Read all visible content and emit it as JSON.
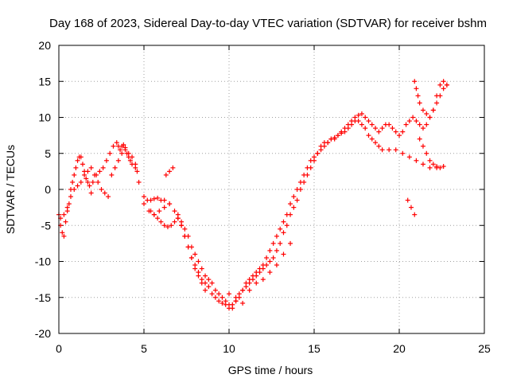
{
  "chart_data": {
    "type": "scatter",
    "title": "Day 168 of 2023, Sidereal Day-to-day VTEC variation (SDTVAR) for receiver bshm",
    "xlabel": "GPS time / hours",
    "ylabel": "SDTVAR / TECUs",
    "xlim": [
      0,
      25
    ],
    "ylim": [
      -20,
      20
    ],
    "xticks": [
      0,
      5,
      10,
      15,
      20,
      25
    ],
    "yticks": [
      -20,
      -15,
      -10,
      -5,
      0,
      5,
      10,
      15,
      20
    ],
    "xtick_labels": [
      "0",
      "5",
      "10",
      "15",
      "20",
      "25"
    ],
    "ytick_labels": [
      "-20",
      "-15",
      "-10",
      "-5",
      "0",
      "5",
      "10",
      "15",
      "20"
    ],
    "grid": true,
    "marker": "+",
    "marker_color": "#ff0000",
    "series": [
      {
        "name": "SDTVAR",
        "x": [
          0.0,
          0.1,
          0.2,
          0.3,
          0.4,
          0.5,
          0.6,
          0.7,
          0.8,
          0.9,
          1.0,
          1.1,
          1.2,
          1.3,
          1.4,
          1.5,
          1.6,
          1.7,
          1.8,
          1.9,
          2.0,
          2.2,
          2.4,
          2.6,
          2.8,
          3.0,
          3.2,
          3.4,
          3.5,
          3.6,
          3.7,
          3.8,
          3.9,
          4.0,
          4.1,
          4.2,
          4.3,
          4.5,
          4.6,
          4.7,
          5.0,
          5.2,
          5.4,
          5.6,
          5.8,
          6.0,
          6.2,
          6.5,
          6.8,
          7.0,
          7.2,
          7.4,
          7.6,
          7.8,
          8.0,
          8.2,
          8.4,
          8.6,
          8.8,
          9.0,
          9.2,
          9.4,
          9.6,
          9.8,
          10.0,
          10.2,
          10.4,
          10.6,
          10.8,
          11.0,
          11.2,
          11.4,
          11.6,
          11.8,
          12.0,
          12.2,
          12.4,
          12.6,
          12.8,
          13.0,
          13.2,
          13.4,
          13.6,
          13.8,
          14.0,
          14.2,
          14.4,
          14.6,
          14.8,
          15.0,
          15.2,
          15.4,
          15.6,
          15.8,
          16.0,
          16.2,
          16.4,
          16.6,
          16.8,
          17.0,
          17.2,
          17.4,
          17.6,
          17.8,
          18.0,
          18.2,
          18.4,
          18.6,
          18.8,
          19.0,
          19.2,
          19.4,
          19.6,
          19.8,
          20.0,
          20.2,
          20.4,
          20.6,
          20.8,
          21.0,
          21.2,
          21.4,
          21.6,
          21.8,
          22.0,
          22.2,
          22.4,
          22.6,
          22.8,
          0.1,
          0.3,
          0.5,
          0.7,
          0.9,
          1.1,
          1.3,
          1.5,
          1.7,
          1.9,
          2.1,
          2.3,
          2.5,
          2.7,
          2.9,
          3.1,
          3.3,
          3.5,
          3.7,
          3.9,
          4.1,
          4.3,
          4.5,
          5.0,
          5.3,
          5.6,
          5.9,
          6.2,
          6.5,
          7.0,
          7.2,
          7.4,
          7.6,
          7.8,
          8.0,
          8.2,
          8.4,
          8.6,
          8.8,
          9.0,
          9.2,
          9.4,
          9.6,
          9.8,
          10.0,
          10.2,
          10.4,
          10.6,
          10.8,
          11.0,
          11.2,
          11.4,
          11.6,
          11.8,
          12.0,
          12.2,
          12.4,
          12.6,
          12.8,
          13.0,
          13.2,
          13.4,
          13.6,
          13.8,
          14.0,
          14.2,
          14.4,
          14.6,
          14.8,
          15.0,
          15.2,
          15.4,
          15.6,
          15.8,
          16.0,
          16.2,
          16.4,
          16.6,
          16.8,
          17.0,
          17.2,
          17.4,
          17.6,
          17.8,
          18.0,
          18.2,
          18.4,
          18.6,
          18.8,
          19.0,
          19.4,
          19.8,
          20.2,
          20.6,
          21.0,
          21.4,
          21.8,
          22.2,
          22.6,
          5.4,
          5.6,
          5.8,
          6.0,
          6.2,
          6.4,
          6.6,
          6.8,
          7.0,
          7.2,
          7.4,
          7.6,
          7.8,
          8.0,
          8.2,
          8.4,
          8.6,
          6.3,
          6.5,
          6.7,
          10.0,
          10.4,
          10.8,
          11.2,
          11.6,
          12.0,
          12.4,
          12.8,
          13.2,
          13.6,
          20.9,
          21.0,
          21.1,
          21.2,
          21.4,
          21.6,
          21.8,
          22.0,
          22.2,
          22.4,
          22.6,
          22.8,
          21.2,
          21.4,
          21.6,
          21.8,
          22.0,
          22.2,
          22.4,
          20.5,
          20.7,
          20.9
        ],
        "y": [
          -3.5,
          -5.0,
          -6.0,
          -6.5,
          -4.5,
          -3.0,
          -2.0,
          0.0,
          1.0,
          2.0,
          3.0,
          4.0,
          4.5,
          4.5,
          3.5,
          2.5,
          1.5,
          1.0,
          0.5,
          -0.5,
          1.0,
          2.0,
          2.5,
          3.0,
          4.0,
          5.0,
          6.0,
          6.5,
          6.0,
          5.5,
          6.0,
          6.2,
          5.8,
          5.0,
          4.5,
          4.0,
          3.5,
          3.0,
          2.5,
          1.0,
          -1.0,
          -1.5,
          -1.5,
          -1.3,
          -1.2,
          -1.5,
          -1.5,
          -2.0,
          -3.0,
          -4.0,
          -5.0,
          -6.5,
          -8.0,
          -9.5,
          -10.5,
          -11.5,
          -12.5,
          -13.0,
          -13.5,
          -14.5,
          -15.0,
          -15.5,
          -15.8,
          -16.0,
          -16.5,
          -16.0,
          -15.5,
          -15.0,
          -14.0,
          -13.5,
          -13.0,
          -12.5,
          -12.0,
          -11.5,
          -11.0,
          -10.5,
          -10.0,
          -9.5,
          -8.5,
          -7.5,
          -6.0,
          -5.0,
          -3.5,
          -2.5,
          -1.5,
          0.0,
          1.0,
          2.0,
          3.0,
          4.0,
          5.0,
          6.0,
          6.5,
          6.5,
          7.0,
          7.0,
          7.5,
          8.0,
          8.5,
          9.0,
          9.5,
          10.0,
          10.3,
          10.5,
          10.0,
          9.5,
          9.0,
          8.5,
          8.0,
          8.5,
          9.0,
          9.0,
          8.5,
          8.0,
          7.5,
          8.0,
          9.0,
          9.5,
          10.0,
          9.5,
          9.0,
          8.5,
          9.0,
          10.0,
          11.0,
          12.0,
          13.0,
          14.0,
          14.5,
          -4.0,
          -3.5,
          -2.5,
          -1.0,
          0.0,
          0.5,
          1.0,
          2.0,
          2.5,
          3.0,
          2.0,
          1.0,
          0.0,
          -0.5,
          -1.0,
          2.0,
          3.0,
          4.0,
          5.0,
          5.5,
          5.0,
          4.5,
          3.5,
          -2.0,
          -3.0,
          -3.5,
          -3.0,
          -2.5,
          -2.0,
          -3.5,
          -4.5,
          -5.5,
          -6.5,
          -8.0,
          -9.0,
          -10.0,
          -11.0,
          -12.0,
          -12.5,
          -13.0,
          -14.0,
          -14.5,
          -15.0,
          -15.5,
          -16.0,
          -16.5,
          -15.5,
          -14.5,
          -14.0,
          -13.0,
          -12.5,
          -12.0,
          -11.5,
          -11.0,
          -10.5,
          -9.5,
          -8.5,
          -7.5,
          -6.5,
          -5.5,
          -4.5,
          -3.5,
          -2.0,
          -1.0,
          0.0,
          1.0,
          2.0,
          3.0,
          4.0,
          4.5,
          5.0,
          5.5,
          6.0,
          6.5,
          7.0,
          7.2,
          7.5,
          7.8,
          8.0,
          8.5,
          9.0,
          9.5,
          9.5,
          9.0,
          8.5,
          7.5,
          7.0,
          6.5,
          6.0,
          5.5,
          5.5,
          5.5,
          5.0,
          4.5,
          4.0,
          3.5,
          3.0,
          3.0,
          3.2,
          -3.0,
          -3.5,
          -4.0,
          -4.5,
          -5.0,
          -5.2,
          -5.0,
          -4.5,
          -4.0,
          -5.0,
          -6.5,
          -8.0,
          -9.5,
          -11.0,
          -12.0,
          -13.0,
          -14.0,
          2.0,
          2.5,
          3.0,
          -14.5,
          -15.0,
          -15.8,
          -14.0,
          -13.0,
          -12.5,
          -11.5,
          -10.5,
          -9.0,
          -7.5,
          15.0,
          14.0,
          13.0,
          12.0,
          11.0,
          10.5,
          10.0,
          11.0,
          13.0,
          14.5,
          15.0,
          14.5,
          7.0,
          6.0,
          5.0,
          4.0,
          3.5,
          3.2,
          3.0,
          -1.5,
          -2.5,
          -3.5
        ]
      }
    ]
  },
  "point_colour": "#ff0000"
}
